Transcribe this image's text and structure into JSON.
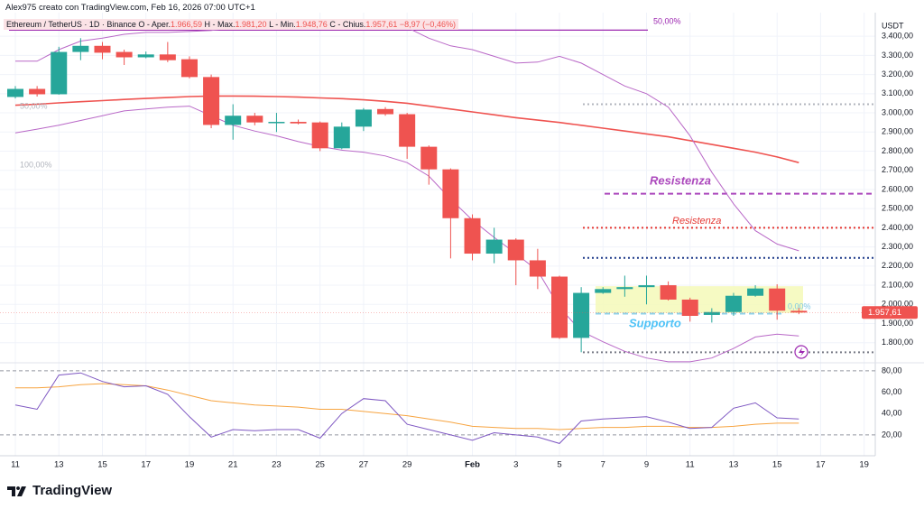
{
  "chart_data": {
    "type": "candlestick",
    "header": "Alex975 creato con TradingView.com, Feb 16, 2026 07:00 UTC+1",
    "symbol": "Ethereum / TetherUS · 1D · Binance",
    "ohlc_legend": [
      {
        "label": "O - Aper.",
        "value": "1.966,59"
      },
      {
        "label": "H - Max.",
        "value": "1.981,20"
      },
      {
        "label": "L - Min.",
        "value": "1.948,76"
      },
      {
        "label": "C - Chius.",
        "value": "1.957,61"
      }
    ],
    "change": "−8,97 (−0,46%)",
    "logo": "TradingView",
    "y_axis_label": "USDT",
    "categories": [
      "11",
      null,
      "13",
      null,
      "15",
      null,
      "17",
      null,
      "19",
      null,
      "21",
      null,
      "23",
      null,
      "25",
      null,
      "27",
      null,
      "29",
      null,
      null,
      "Feb",
      null,
      "3",
      null,
      "5",
      null,
      "7",
      null,
      "9",
      null,
      "11",
      null,
      "13",
      null,
      "15",
      null,
      "17",
      null,
      "19"
    ],
    "open": [
      3083,
      3125,
      3097,
      3318,
      3350,
      3318,
      3290,
      3305,
      3280,
      3187,
      2937,
      2985,
      2950,
      2953,
      2950,
      2815,
      2928,
      3020,
      2993,
      2823,
      2705,
      2450,
      2265,
      2338,
      2230,
      2145,
      1825,
      2060,
      2080,
      2090,
      2100,
      2025,
      1945,
      1960,
      2045,
      2083,
      1966.59,
      null,
      null,
      null
    ],
    "high": [
      3140,
      3140,
      3345,
      3390,
      3370,
      3330,
      3320,
      3370,
      3295,
      3200,
      3045,
      3000,
      3000,
      2965,
      2955,
      2950,
      3025,
      3030,
      3000,
      2830,
      2710,
      2470,
      2400,
      2345,
      2290,
      2150,
      2090,
      2090,
      2150,
      2150,
      2120,
      2035,
      1980,
      2060,
      2100,
      2105,
      1981.2,
      null,
      null,
      null
    ],
    "low": [
      3075,
      3085,
      3095,
      3275,
      3280,
      3250,
      3285,
      3265,
      3180,
      2920,
      2860,
      2935,
      2900,
      2940,
      2800,
      2810,
      2905,
      2985,
      2760,
      2625,
      2240,
      2230,
      2215,
      2100,
      2080,
      1820,
      1750,
      2055,
      2040,
      2000,
      2020,
      1910,
      1905,
      1940,
      2040,
      1920,
      1948.76,
      null,
      null,
      null
    ],
    "close": [
      3125,
      3097,
      3318,
      3350,
      3314,
      3290,
      3305,
      3275,
      3187,
      2937,
      2985,
      2950,
      2953,
      2945,
      2815,
      2928,
      3017,
      2993,
      2823,
      2705,
      2450,
      2265,
      2338,
      2230,
      2145,
      1825,
      2060,
      2080,
      2090,
      2100,
      2025,
      1940,
      1960,
      2045,
      2083,
      1967,
      1957.61,
      null,
      null,
      null
    ],
    "up_color": "#26a69a",
    "down_color": "#ef5350",
    "lines": [
      {
        "color": "#ef5350",
        "values": [
          3040,
          3045,
          3052,
          3058,
          3064,
          3070,
          3075,
          3080,
          3085,
          3088,
          3088,
          3087,
          3085,
          3082,
          3078,
          3074,
          3068,
          3060,
          3050,
          3035,
          3020,
          3005,
          2990,
          2975,
          2962,
          2950,
          2935,
          2920,
          2905,
          2890,
          2875,
          2855,
          2835,
          2815,
          2795,
          2770,
          2740,
          null,
          null,
          null
        ]
      },
      {
        "color": "#b968c7",
        "values": [
          3270,
          3270,
          3330,
          3375,
          3390,
          3410,
          3420,
          3420,
          3425,
          3430,
          3445,
          3455,
          3460,
          3465,
          3470,
          3470,
          3475,
          3485,
          3445,
          3390,
          3350,
          3330,
          3295,
          3260,
          3265,
          3295,
          3260,
          3200,
          3140,
          3100,
          3030,
          2880,
          2690,
          2525,
          2385,
          2315,
          2280,
          null,
          null,
          null
        ]
      },
      {
        "color": "#b968c7",
        "values": [
          2895,
          2915,
          2935,
          2960,
          2985,
          3010,
          3020,
          3030,
          3035,
          2985,
          2935,
          2905,
          2880,
          2850,
          2825,
          2805,
          2795,
          2775,
          2740,
          2670,
          2550,
          2440,
          2350,
          2265,
          2175,
          1985,
          1860,
          1805,
          1755,
          1720,
          1700,
          1700,
          1720,
          1770,
          1830,
          1845,
          1835,
          null,
          null,
          null
        ]
      }
    ],
    "ylim": [
      1695,
      3495
    ],
    "yticks": [
      {
        "value": 1800,
        "label": "1.800,00"
      },
      {
        "value": 1900,
        "label": "1.900,00"
      },
      {
        "value": 2000,
        "label": "2.000,00"
      },
      {
        "value": 2100,
        "label": "2.100,00"
      },
      {
        "value": 2200,
        "label": "2.200,00"
      },
      {
        "value": 2300,
        "label": "2.300,00"
      },
      {
        "value": 2400,
        "label": "2.400,00"
      },
      {
        "value": 2500,
        "label": "2.500,00"
      },
      {
        "value": 2600,
        "label": "2.600,00"
      },
      {
        "value": 2700,
        "label": "2.700,00"
      },
      {
        "value": 2800,
        "label": "2.800,00"
      },
      {
        "value": 2900,
        "label": "2.900,00"
      },
      {
        "value": 3000,
        "label": "3.000,00"
      },
      {
        "value": 3100,
        "label": "3.100,00"
      },
      {
        "value": 3200,
        "label": "3.200,00"
      },
      {
        "value": 3300,
        "label": "3.300,00"
      },
      {
        "value": 3400,
        "label": "3.400,00"
      }
    ],
    "grid": true,
    "last_price": {
      "value": 1957.61,
      "label": "1.957,61"
    },
    "levels": [
      {
        "value": 3432,
        "color": "#9c27b0",
        "style": "solid"
      },
      {
        "value": 3045,
        "color": "#b2b5be",
        "style": "dotted"
      },
      {
        "value": 2578,
        "color": "#ab47bc",
        "style": "dashed"
      },
      {
        "value": 2400,
        "color": "#e53935",
        "style": "dotted"
      },
      {
        "value": 2243,
        "color": "#1e3a8a",
        "style": "dotted"
      },
      {
        "value": 1952,
        "color": "#8fd0e8",
        "style": "dashed"
      },
      {
        "value": 1750,
        "color": "#787b86",
        "style": "dotted"
      }
    ],
    "support_zone": [
      1955,
      2095
    ],
    "annotations": {
      "resistance_1": "Resistenza",
      "resistance_2": "Resistenza",
      "support": "Supporto",
      "fib_50_top": "50,00%",
      "fib_50_left": "50,00%",
      "fib_100": "100,00%",
      "fib_0": "0,00%"
    },
    "rsi": {
      "ylim": [
        0.5,
        87.5
      ],
      "yticks": [
        {
          "value": 20,
          "label": "20,00"
        },
        {
          "value": 40,
          "label": "40,00"
        },
        {
          "value": 60,
          "label": "60,00"
        },
        {
          "value": 80,
          "label": "80,00"
        }
      ],
      "bands": [
        20,
        80
      ],
      "color": "#7e57c2",
      "ma_color": "#f7a440",
      "values": [
        48,
        44,
        76,
        78,
        70,
        65,
        66,
        58,
        37,
        18,
        25,
        24,
        25,
        25,
        17,
        40,
        54,
        52,
        30,
        25,
        20,
        15,
        22,
        20,
        18,
        12,
        33,
        35,
        36,
        37,
        32,
        26,
        27,
        45,
        50,
        36,
        35,
        null,
        null,
        null
      ],
      "ma": [
        64,
        64,
        65,
        67,
        68,
        67,
        66,
        62,
        57,
        52,
        50,
        48,
        47,
        46,
        44,
        44,
        42,
        40,
        38,
        35,
        32,
        28,
        27,
        26,
        26,
        25,
        26,
        27,
        27,
        28,
        28,
        27,
        27,
        28,
        30,
        31,
        31,
        null,
        null,
        null
      ]
    }
  }
}
